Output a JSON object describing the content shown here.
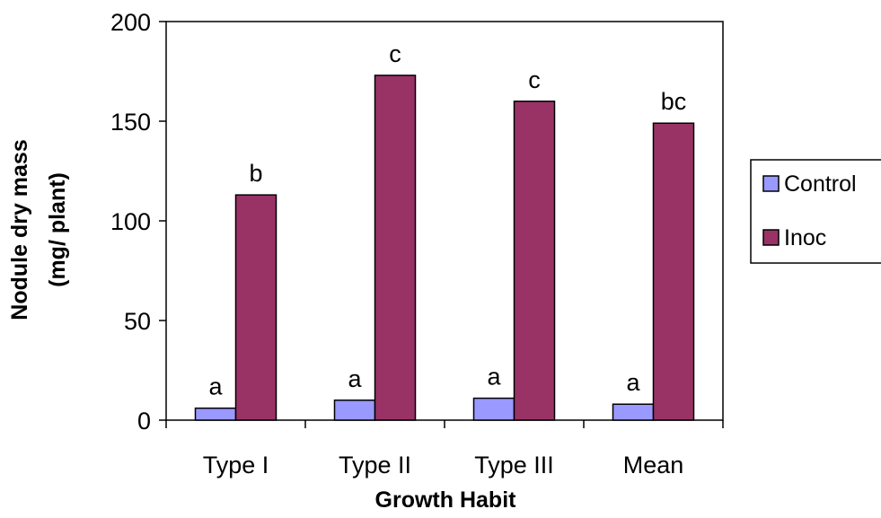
{
  "chart_data": {
    "type": "bar",
    "xlabel": "Growth Habit",
    "ylabel_line1": "Nodule dry mass",
    "ylabel_line2": "(mg/ plant)",
    "categories": [
      "Type I",
      "Type II",
      "Type III",
      "Mean"
    ],
    "series": [
      {
        "name": "Control",
        "color": "#9999ff",
        "values": [
          6,
          10,
          11,
          8
        ],
        "labels": [
          "a",
          "a",
          "a",
          "a"
        ]
      },
      {
        "name": "Inoc",
        "color": "#993366",
        "values": [
          113,
          173,
          160,
          149
        ],
        "labels": [
          "b",
          "c",
          "c",
          "bc"
        ]
      }
    ],
    "ylim": [
      0,
      200
    ],
    "yticks": [
      0,
      50,
      100,
      150,
      200
    ],
    "grid": false,
    "legend_position": "right"
  }
}
